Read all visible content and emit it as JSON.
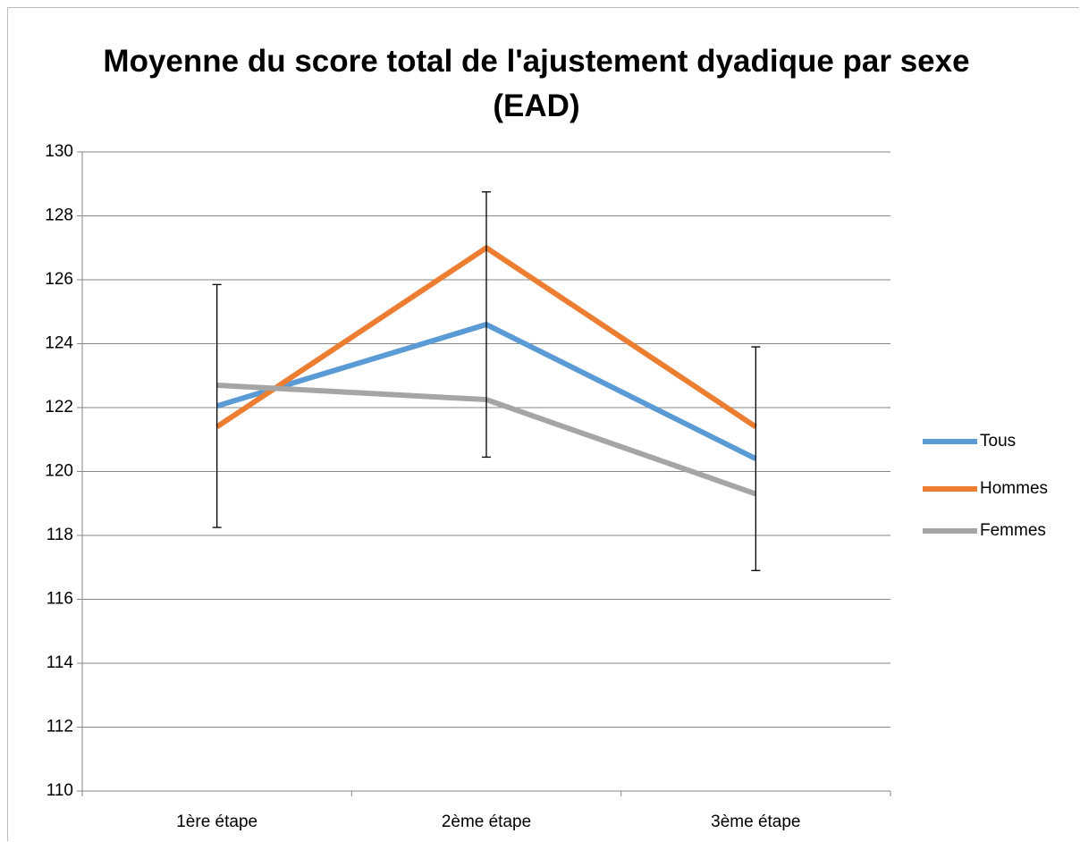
{
  "chart_data": {
    "type": "line",
    "title": "Moyenne du score total de l'ajustement dyadique par sexe (EAD)",
    "categories": [
      "1ère étape",
      "2ème étape",
      "3ème étape"
    ],
    "series": [
      {
        "name": "Tous",
        "color": "#5b9bd5",
        "values": [
          122.05,
          124.6,
          120.4
        ],
        "errors": [
          3.8,
          4.15,
          3.5
        ]
      },
      {
        "name": "Hommes",
        "color": "#ed7d31",
        "values": [
          121.4,
          127.0,
          121.4
        ]
      },
      {
        "name": "Femmes",
        "color": "#a5a5a5",
        "values": [
          122.7,
          122.25,
          119.3
        ]
      }
    ],
    "ylim": [
      110,
      130
    ],
    "yticks": [
      110,
      112,
      114,
      116,
      118,
      120,
      122,
      124,
      126,
      128,
      130
    ],
    "grid": true,
    "legend": "right"
  }
}
